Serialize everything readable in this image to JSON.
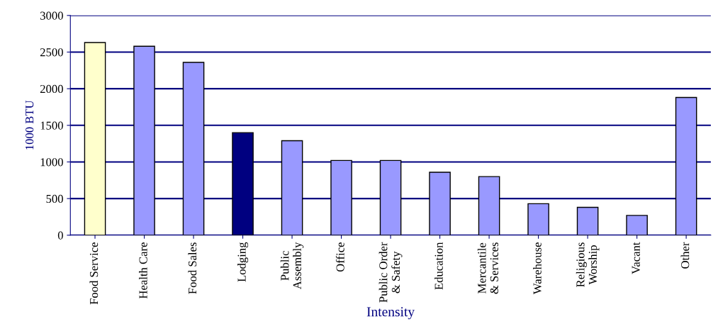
{
  "chart_data": {
    "type": "bar",
    "xlabel": "Intensity",
    "ylabel": "1000 BTU",
    "categories": [
      "Food Service",
      "Health Care",
      "Food Sales",
      "Lodging",
      "Public\nAssembly",
      "Office",
      "Public Order\n& Safety",
      "Education",
      "Mercantile\n& Services",
      "Warehouse",
      "Religious\nWorship",
      "Vacant",
      "Other"
    ],
    "values": [
      2630,
      2580,
      2360,
      1400,
      1290,
      1020,
      1020,
      860,
      800,
      430,
      380,
      270,
      1880
    ],
    "colors": [
      "#ffffcc",
      "#9999ff",
      "#9999ff",
      "#000080",
      "#9999ff",
      "#9999ff",
      "#9999ff",
      "#9999ff",
      "#9999ff",
      "#9999ff",
      "#9999ff",
      "#9999ff",
      "#9999ff"
    ],
    "ylim": [
      0,
      3000
    ],
    "yticks": [
      0,
      500,
      1000,
      1500,
      2000,
      2500,
      3000
    ],
    "grid": "y",
    "legend": false
  }
}
